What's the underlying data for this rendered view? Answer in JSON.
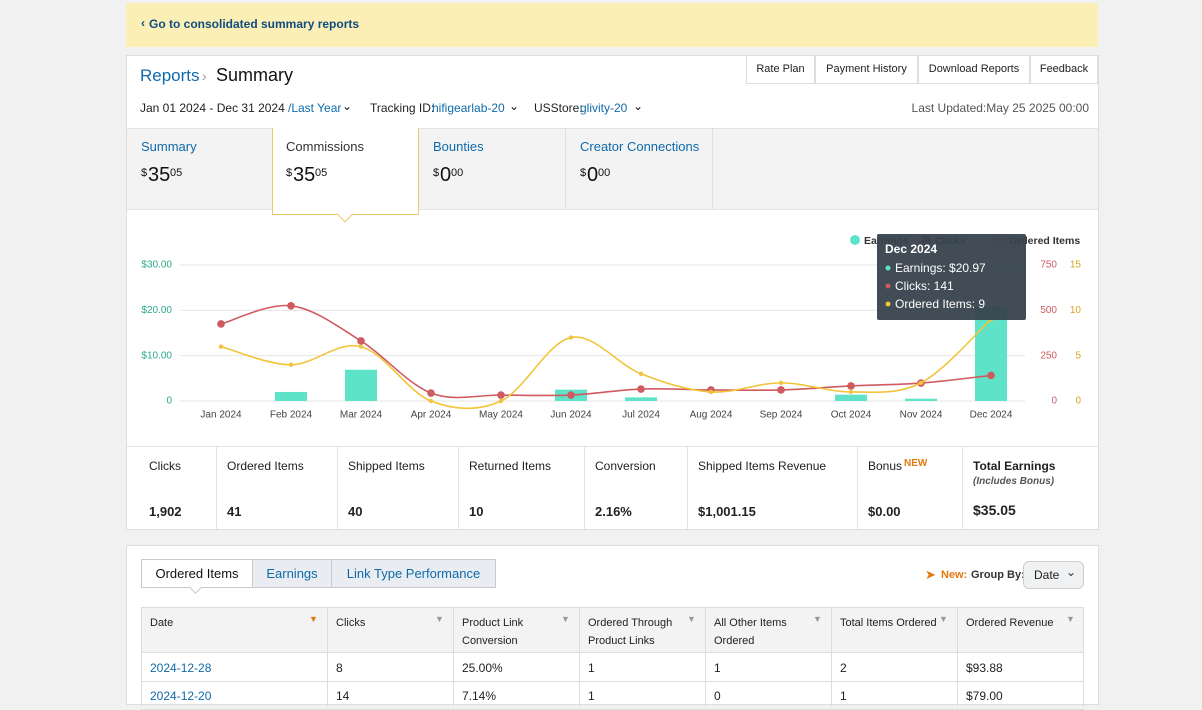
{
  "banner": {
    "link": "Go to consolidated summary reports"
  },
  "header": {
    "breadcrumb": "Reports",
    "title": "Summary",
    "buttons": [
      "Rate Plan",
      "Payment History",
      "Download Reports",
      "Feedback"
    ],
    "date_range": "Jan 01 2024 - Dec 31 2024",
    "period": "/Last Year",
    "tracking_label": "Tracking ID:",
    "tracking_id": "hifigearlab-20",
    "store_label": "USStore:",
    "store": "glivity-20",
    "last_updated": "Last Updated:May 25 2025 00:00"
  },
  "tabs": [
    {
      "label": "Summary",
      "symbol": "$",
      "whole": "35",
      "cents": "05"
    },
    {
      "label": "Commissions",
      "symbol": "$",
      "whole": "35",
      "cents": "05"
    },
    {
      "label": "Bounties",
      "symbol": "$",
      "whole": "0",
      "cents": "00"
    },
    {
      "label": "Creator Connections",
      "symbol": "$",
      "whole": "0",
      "cents": "00"
    }
  ],
  "chart_data": {
    "type": "bar-line",
    "categories": [
      "Jan 2024",
      "Feb 2024",
      "Mar 2024",
      "Apr 2024",
      "May 2024",
      "Jun 2024",
      "Jul 2024",
      "Aug 2024",
      "Sep 2024",
      "Oct 2024",
      "Nov 2024",
      "Dec 2024"
    ],
    "series": [
      {
        "name": "Earnings",
        "type": "bar",
        "color": "#5fe3c8",
        "values": [
          0,
          2.0,
          6.9,
          0,
          0,
          2.5,
          0.8,
          0,
          0,
          1.4,
          0.5,
          20.97
        ]
      },
      {
        "name": "Clicks",
        "type": "line",
        "axis": "y2",
        "color": "#cf5a60",
        "values": [
          425,
          525,
          331,
          44,
          33,
          33,
          66,
          61,
          61,
          83,
          99,
          141
        ]
      },
      {
        "name": "Ordered Items",
        "type": "line",
        "axis": "y3",
        "color": "#f2c43a",
        "values": [
          6,
          4,
          6,
          0,
          0,
          7,
          3,
          1,
          2,
          1,
          2,
          9
        ]
      }
    ],
    "ylim": [
      0,
      30
    ],
    "yticks": [
      0,
      {
        "value": 10,
        "label": "$10.00"
      },
      {
        "value": 20,
        "label": "$20.00"
      },
      {
        "value": 30,
        "label": "$30.00"
      }
    ],
    "y2lim": [
      0,
      750
    ],
    "y2ticks": [
      0,
      250,
      500,
      750
    ],
    "y3lim": [
      0,
      15
    ],
    "y3ticks": [
      0,
      5,
      10,
      15
    ],
    "grid": true,
    "legend": "top-right",
    "tooltip": {
      "title": "Dec 2024",
      "lines": [
        "Earnings: $20.97",
        "Clicks: 141",
        "Ordered Items: 9"
      ]
    }
  },
  "stats": [
    {
      "label": "Clicks",
      "value": "1,902"
    },
    {
      "label": "Ordered Items",
      "value": "41"
    },
    {
      "label": "Shipped Items",
      "value": "40"
    },
    {
      "label": "Returned Items",
      "value": "10"
    },
    {
      "label": "Conversion",
      "value": "2.16%"
    },
    {
      "label": "Shipped Items Revenue",
      "value": "$1,001.15"
    },
    {
      "label": "Bonus",
      "badge": "NEW",
      "value": "$0.00"
    },
    {
      "label": "Total Earnings",
      "note": "(Includes Bonus)",
      "value": "$35.05"
    }
  ],
  "report": {
    "tabs": [
      "Ordered Items",
      "Earnings",
      "Link Type Performance"
    ],
    "new_label": "New:",
    "group_by_label": "Group By:",
    "group_by": "Date",
    "table": {
      "columns": [
        "Date",
        "Clicks",
        "Product Link Conversion",
        "Ordered Through Product Links",
        "All Other Items Ordered",
        "Total Items Ordered",
        "Ordered Revenue"
      ],
      "rows": [
        [
          "2024-12-28",
          "8",
          "25.00%",
          "1",
          "1",
          "2",
          "$93.88"
        ],
        [
          "2024-12-20",
          "14",
          "7.14%",
          "1",
          "0",
          "1",
          "$79.00"
        ]
      ]
    }
  }
}
